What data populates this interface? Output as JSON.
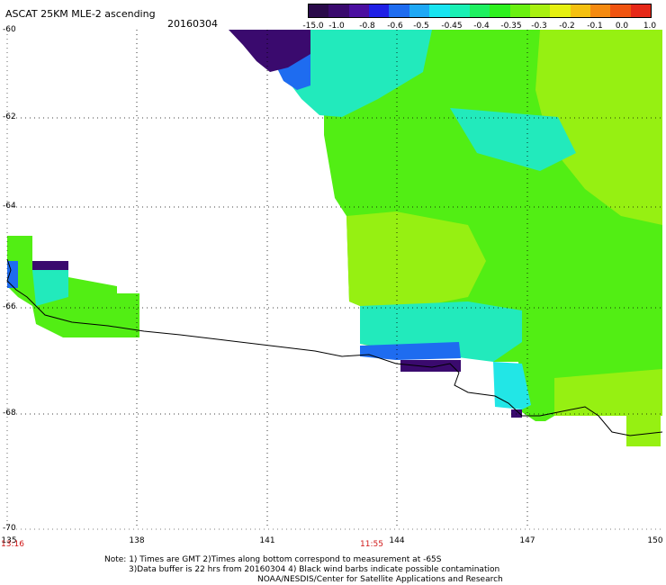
{
  "header": {
    "title": "ASCAT 25KM MLE-2 ascending",
    "date": "20160304"
  },
  "colorbar": {
    "labels": [
      "-15.0",
      "-1.0",
      "-0.8",
      "-0.6",
      "-0.5",
      "-0.45",
      "-0.4",
      "-0.35",
      "-0.3",
      "-0.2",
      "-0.1",
      "0.0",
      "1.0"
    ],
    "colors": [
      "#2a0a4a",
      "#3a0a6e",
      "#4b0fa0",
      "#2020e6",
      "#1e6cf0",
      "#1ea8f5",
      "#18e4f0",
      "#19f0b4",
      "#1ef060",
      "#2ef01e",
      "#6af010",
      "#a8f010",
      "#e6f010",
      "#f5c010",
      "#f58a10",
      "#f05410",
      "#e62818"
    ]
  },
  "axes": {
    "lat_labels": [
      "-60",
      "-62",
      "-64",
      "-66",
      "-68",
      "-70"
    ],
    "lon_labels": [
      "135",
      "138",
      "141",
      "144",
      "147",
      "150"
    ],
    "time_labels": [
      "13:16",
      "11:55"
    ]
  },
  "notes": [
    "Note: 1) Times are GMT 2)Times along bottom correspond to measurement at -65S",
    "3)Data buffer is 22 hrs from 20160304 4) Black wind barbs indicate possible contamination",
    "NOAA/NESDIS/Center for Satellite Applications and Research"
  ],
  "colors": {
    "dark": "#3a0a6e",
    "blue": "#2020e6",
    "cyan": "#18e4f0",
    "teal": "#19f0b4",
    "green": "#2ef01e",
    "lime": "#90f010"
  }
}
